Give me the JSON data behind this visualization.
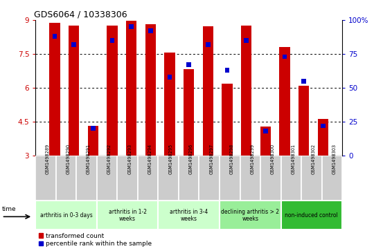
{
  "title": "GDS6064 / 10338306",
  "samples": [
    "GSM1498289",
    "GSM1498290",
    "GSM1498291",
    "GSM1498292",
    "GSM1498293",
    "GSM1498294",
    "GSM1498295",
    "GSM1498296",
    "GSM1498297",
    "GSM1498298",
    "GSM1498299",
    "GSM1498300",
    "GSM1498301",
    "GSM1498302",
    "GSM1498303"
  ],
  "red_values": [
    8.88,
    8.75,
    4.33,
    8.75,
    8.98,
    8.82,
    7.55,
    6.82,
    8.72,
    6.18,
    8.75,
    4.28,
    7.82,
    6.1,
    4.62
  ],
  "blue_values_pct": [
    88,
    82,
    20,
    85,
    95,
    92,
    58,
    67,
    82,
    63,
    85,
    18,
    73,
    55,
    22
  ],
  "ylim_left": [
    3,
    9
  ],
  "ylim_right": [
    0,
    100
  ],
  "yticks_left": [
    3,
    4.5,
    6,
    7.5,
    9
  ],
  "yticks_right": [
    0,
    25,
    50,
    75,
    100
  ],
  "bar_color_red": "#cc0000",
  "bar_color_blue": "#0000cc",
  "bar_width": 0.55,
  "blue_bar_width": 0.25,
  "background_color": "#ffffff",
  "tick_color_left": "#cc0000",
  "tick_color_right": "#0000cc",
  "group_labels": [
    "arthritis in 0-3 days",
    "arthritis in 1-2\nweeks",
    "arthritis in 3-4\nweeks",
    "declining arthritis > 2\nweeks",
    "non-induced control"
  ],
  "group_ranges": [
    [
      0,
      3
    ],
    [
      3,
      6
    ],
    [
      6,
      9
    ],
    [
      9,
      12
    ],
    [
      12,
      15
    ]
  ],
  "group_colors": [
    "#ccffcc",
    "#ccffcc",
    "#ccffcc",
    "#99ee99",
    "#33bb33"
  ],
  "sample_bg_color": "#cccccc",
  "legend_red": "transformed count",
  "legend_blue": "percentile rank within the sample"
}
